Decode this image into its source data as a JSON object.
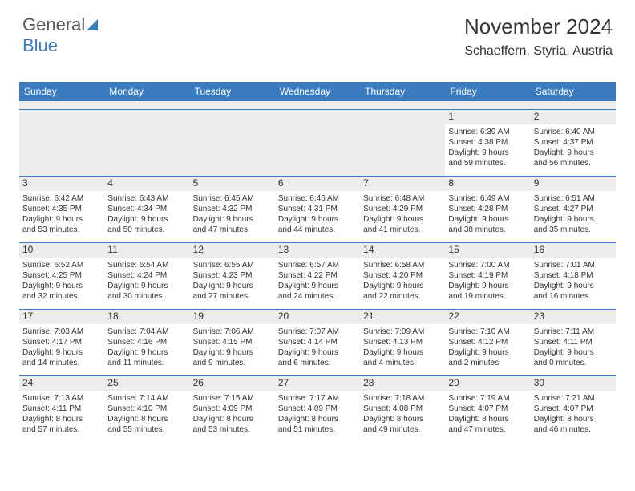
{
  "brand": {
    "part1": "General",
    "part2": "Blue"
  },
  "header": {
    "title": "November 2024",
    "location": "Schaeffern, Styria, Austria"
  },
  "colors": {
    "accent": "#3b7bbf",
    "bg_alt": "#ececec",
    "text": "#333333",
    "white": "#ffffff"
  },
  "daysOfWeek": [
    "Sunday",
    "Monday",
    "Tuesday",
    "Wednesday",
    "Thursday",
    "Friday",
    "Saturday"
  ],
  "weeks": [
    [
      {
        "n": "",
        "empty": true
      },
      {
        "n": "",
        "empty": true
      },
      {
        "n": "",
        "empty": true
      },
      {
        "n": "",
        "empty": true
      },
      {
        "n": "",
        "empty": true
      },
      {
        "n": "1",
        "sr": "Sunrise: 6:39 AM",
        "ss": "Sunset: 4:38 PM",
        "d1": "Daylight: 9 hours",
        "d2": "and 59 minutes."
      },
      {
        "n": "2",
        "sr": "Sunrise: 6:40 AM",
        "ss": "Sunset: 4:37 PM",
        "d1": "Daylight: 9 hours",
        "d2": "and 56 minutes."
      }
    ],
    [
      {
        "n": "3",
        "sr": "Sunrise: 6:42 AM",
        "ss": "Sunset: 4:35 PM",
        "d1": "Daylight: 9 hours",
        "d2": "and 53 minutes."
      },
      {
        "n": "4",
        "sr": "Sunrise: 6:43 AM",
        "ss": "Sunset: 4:34 PM",
        "d1": "Daylight: 9 hours",
        "d2": "and 50 minutes."
      },
      {
        "n": "5",
        "sr": "Sunrise: 6:45 AM",
        "ss": "Sunset: 4:32 PM",
        "d1": "Daylight: 9 hours",
        "d2": "and 47 minutes."
      },
      {
        "n": "6",
        "sr": "Sunrise: 6:46 AM",
        "ss": "Sunset: 4:31 PM",
        "d1": "Daylight: 9 hours",
        "d2": "and 44 minutes."
      },
      {
        "n": "7",
        "sr": "Sunrise: 6:48 AM",
        "ss": "Sunset: 4:29 PM",
        "d1": "Daylight: 9 hours",
        "d2": "and 41 minutes."
      },
      {
        "n": "8",
        "sr": "Sunrise: 6:49 AM",
        "ss": "Sunset: 4:28 PM",
        "d1": "Daylight: 9 hours",
        "d2": "and 38 minutes."
      },
      {
        "n": "9",
        "sr": "Sunrise: 6:51 AM",
        "ss": "Sunset: 4:27 PM",
        "d1": "Daylight: 9 hours",
        "d2": "and 35 minutes."
      }
    ],
    [
      {
        "n": "10",
        "sr": "Sunrise: 6:52 AM",
        "ss": "Sunset: 4:25 PM",
        "d1": "Daylight: 9 hours",
        "d2": "and 32 minutes."
      },
      {
        "n": "11",
        "sr": "Sunrise: 6:54 AM",
        "ss": "Sunset: 4:24 PM",
        "d1": "Daylight: 9 hours",
        "d2": "and 30 minutes."
      },
      {
        "n": "12",
        "sr": "Sunrise: 6:55 AM",
        "ss": "Sunset: 4:23 PM",
        "d1": "Daylight: 9 hours",
        "d2": "and 27 minutes."
      },
      {
        "n": "13",
        "sr": "Sunrise: 6:57 AM",
        "ss": "Sunset: 4:22 PM",
        "d1": "Daylight: 9 hours",
        "d2": "and 24 minutes."
      },
      {
        "n": "14",
        "sr": "Sunrise: 6:58 AM",
        "ss": "Sunset: 4:20 PM",
        "d1": "Daylight: 9 hours",
        "d2": "and 22 minutes."
      },
      {
        "n": "15",
        "sr": "Sunrise: 7:00 AM",
        "ss": "Sunset: 4:19 PM",
        "d1": "Daylight: 9 hours",
        "d2": "and 19 minutes."
      },
      {
        "n": "16",
        "sr": "Sunrise: 7:01 AM",
        "ss": "Sunset: 4:18 PM",
        "d1": "Daylight: 9 hours",
        "d2": "and 16 minutes."
      }
    ],
    [
      {
        "n": "17",
        "sr": "Sunrise: 7:03 AM",
        "ss": "Sunset: 4:17 PM",
        "d1": "Daylight: 9 hours",
        "d2": "and 14 minutes."
      },
      {
        "n": "18",
        "sr": "Sunrise: 7:04 AM",
        "ss": "Sunset: 4:16 PM",
        "d1": "Daylight: 9 hours",
        "d2": "and 11 minutes."
      },
      {
        "n": "19",
        "sr": "Sunrise: 7:06 AM",
        "ss": "Sunset: 4:15 PM",
        "d1": "Daylight: 9 hours",
        "d2": "and 9 minutes."
      },
      {
        "n": "20",
        "sr": "Sunrise: 7:07 AM",
        "ss": "Sunset: 4:14 PM",
        "d1": "Daylight: 9 hours",
        "d2": "and 6 minutes."
      },
      {
        "n": "21",
        "sr": "Sunrise: 7:09 AM",
        "ss": "Sunset: 4:13 PM",
        "d1": "Daylight: 9 hours",
        "d2": "and 4 minutes."
      },
      {
        "n": "22",
        "sr": "Sunrise: 7:10 AM",
        "ss": "Sunset: 4:12 PM",
        "d1": "Daylight: 9 hours",
        "d2": "and 2 minutes."
      },
      {
        "n": "23",
        "sr": "Sunrise: 7:11 AM",
        "ss": "Sunset: 4:11 PM",
        "d1": "Daylight: 9 hours",
        "d2": "and 0 minutes."
      }
    ],
    [
      {
        "n": "24",
        "sr": "Sunrise: 7:13 AM",
        "ss": "Sunset: 4:11 PM",
        "d1": "Daylight: 8 hours",
        "d2": "and 57 minutes."
      },
      {
        "n": "25",
        "sr": "Sunrise: 7:14 AM",
        "ss": "Sunset: 4:10 PM",
        "d1": "Daylight: 8 hours",
        "d2": "and 55 minutes."
      },
      {
        "n": "26",
        "sr": "Sunrise: 7:15 AM",
        "ss": "Sunset: 4:09 PM",
        "d1": "Daylight: 8 hours",
        "d2": "and 53 minutes."
      },
      {
        "n": "27",
        "sr": "Sunrise: 7:17 AM",
        "ss": "Sunset: 4:09 PM",
        "d1": "Daylight: 8 hours",
        "d2": "and 51 minutes."
      },
      {
        "n": "28",
        "sr": "Sunrise: 7:18 AM",
        "ss": "Sunset: 4:08 PM",
        "d1": "Daylight: 8 hours",
        "d2": "and 49 minutes."
      },
      {
        "n": "29",
        "sr": "Sunrise: 7:19 AM",
        "ss": "Sunset: 4:07 PM",
        "d1": "Daylight: 8 hours",
        "d2": "and 47 minutes."
      },
      {
        "n": "30",
        "sr": "Sunrise: 7:21 AM",
        "ss": "Sunset: 4:07 PM",
        "d1": "Daylight: 8 hours",
        "d2": "and 46 minutes."
      }
    ]
  ]
}
